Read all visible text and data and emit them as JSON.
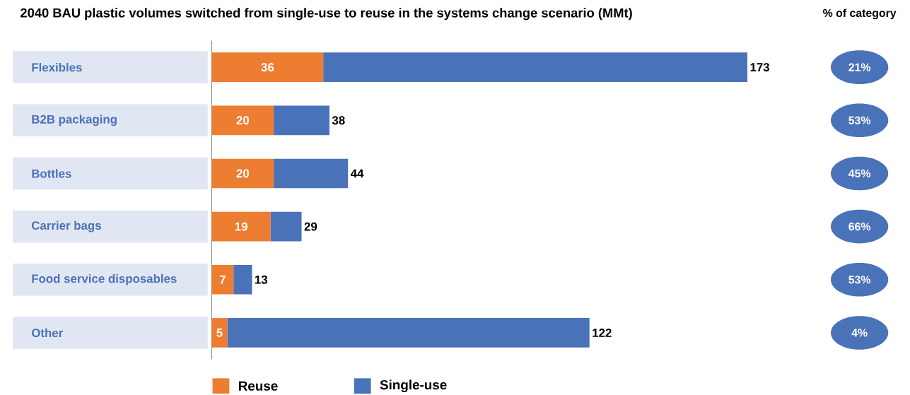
{
  "chart_data": {
    "type": "bar",
    "orientation": "horizontal",
    "stacked": true,
    "title": "2040 BAU plastic volumes switched from single-use to reuse in the systems change scenario (MMt)",
    "categories": [
      "Flexibles",
      "B2B packaging",
      "Bottles",
      "Carrier bags",
      "Food service disposables",
      "Other"
    ],
    "series": [
      {
        "name": "Reuse",
        "color": "#ed7d31",
        "values": [
          36,
          20,
          20,
          19,
          7,
          5
        ],
        "value_labels": [
          "36",
          "20",
          "20",
          "19",
          "7",
          "5"
        ]
      },
      {
        "name": "Single-use",
        "color": "#4a72b8",
        "values": [
          137,
          18,
          24,
          10,
          6,
          117
        ]
      }
    ],
    "totals": [
      "173",
      "38",
      "44",
      "29",
      "13",
      "122"
    ],
    "annotations": [
      "% of category",
      "21%",
      "53%",
      "45%",
      "66%",
      "53%",
      "4%"
    ],
    "legend": "bottom"
  }
}
